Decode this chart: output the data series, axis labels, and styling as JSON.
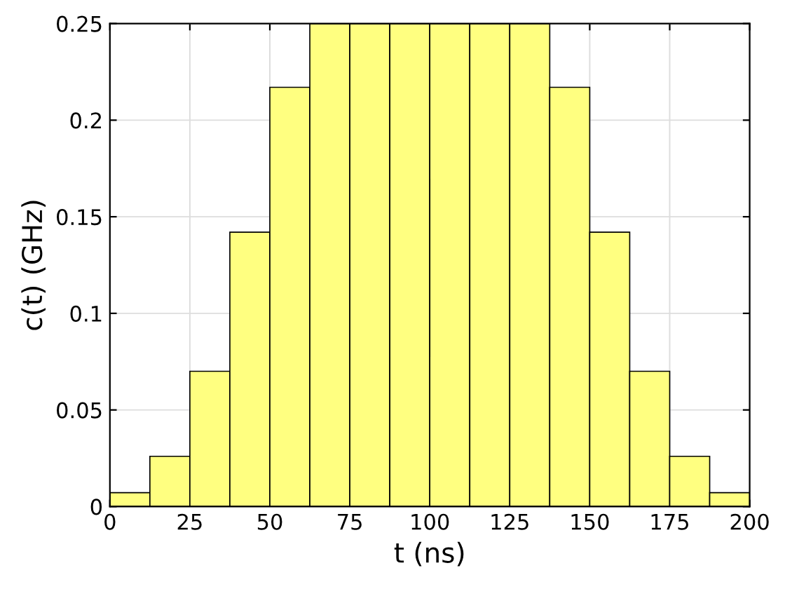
{
  "chart_data": {
    "type": "histogram",
    "xlabel": "t (ns)",
    "ylabel": "c(t) (GHz)",
    "bins": [
      0,
      12.5,
      25,
      37.5,
      50,
      62.5,
      75,
      87.5,
      100,
      112.5,
      125,
      137.5,
      150,
      162.5,
      175,
      187.5,
      200
    ],
    "values": [
      0.0072,
      0.026,
      0.07,
      0.142,
      0.217,
      0.25,
      0.25,
      0.25,
      0.25,
      0.25,
      0.25,
      0.217,
      0.142,
      0.07,
      0.026,
      0.0072
    ],
    "color": "#ffff80",
    "xlim": [
      0,
      200
    ],
    "xticks": [
      0,
      25,
      50,
      75,
      100,
      125,
      150,
      175,
      200
    ],
    "ylim": [
      0,
      0.25
    ],
    "yticks": [
      0,
      0.05,
      0.1,
      0.15,
      0.2,
      0.25
    ],
    "grid": true
  }
}
